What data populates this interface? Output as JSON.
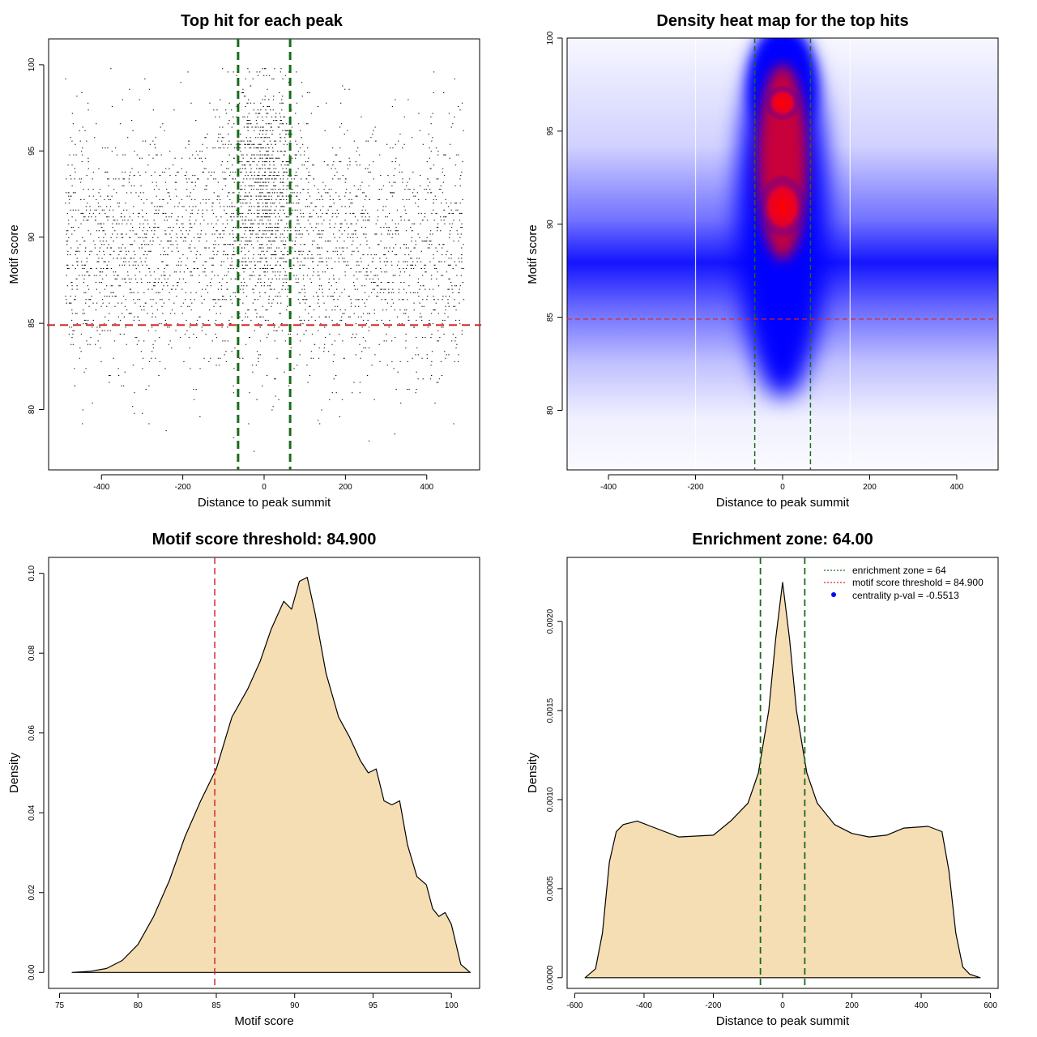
{
  "colors": {
    "threshold_line": "#d62728",
    "zone_line": "#1a6b1a",
    "density_fill": "#f5deb3",
    "heat_low": "#ffffff",
    "heat_mid": "#0000ff",
    "heat_high": "#ff0000",
    "points": "#000000",
    "legend_dot": "#0000ff"
  },
  "chart_data": [
    {
      "id": "scatter",
      "type": "scatter",
      "title": "Top hit for each peak",
      "xlabel": "Distance to peak summit",
      "ylabel": "Motif score",
      "xlim": [
        -530,
        530
      ],
      "ylim": [
        76.5,
        101.5
      ],
      "xticks": [
        -400,
        -200,
        0,
        200,
        400
      ],
      "yticks": [
        80,
        85,
        90,
        95,
        100
      ],
      "point_x_range": [
        -490,
        490
      ],
      "approx_point_count": 12000,
      "threshold": 84.9,
      "zone": [
        -64,
        64
      ]
    },
    {
      "id": "heatmap",
      "type": "heatmap",
      "title": "Density heat map for the top hits",
      "xlabel": "Distance to peak summit",
      "ylabel": "Motif score",
      "xlim": [
        -495,
        495
      ],
      "ylim": [
        76.8,
        100
      ],
      "xticks": [
        -400,
        -200,
        0,
        200,
        400
      ],
      "yticks": [
        80,
        85,
        90,
        95,
        100
      ],
      "hotspots": [
        {
          "x": 0,
          "y": 96.5,
          "intensity": "high"
        },
        {
          "x": 0,
          "y": 91,
          "intensity": "high"
        }
      ],
      "white_grid_x": [
        -200,
        155
      ],
      "threshold": 84.9,
      "zone": [
        -64,
        64
      ]
    },
    {
      "id": "score-density",
      "type": "area",
      "title": "Motif score threshold: 84.900",
      "xlabel": "Motif score",
      "ylabel": "Density",
      "xlim": [
        74.3,
        101.8
      ],
      "ylim": [
        -0.004,
        0.104
      ],
      "xticks": [
        75,
        80,
        85,
        90,
        95,
        100
      ],
      "yticks": [
        0.0,
        0.02,
        0.04,
        0.06,
        0.08,
        0.1
      ],
      "ytick_labels": [
        "0.00",
        "0.02",
        "0.04",
        "0.06",
        "0.08",
        "0.10"
      ],
      "x": [
        75.8,
        77,
        78,
        79,
        80,
        81,
        82,
        83,
        84,
        85,
        86,
        87,
        87.8,
        88.5,
        89.3,
        89.8,
        90.3,
        90.8,
        91.3,
        92,
        92.8,
        93.5,
        94.2,
        94.7,
        95.2,
        95.7,
        96.2,
        96.7,
        97.2,
        97.8,
        98.4,
        98.8,
        99.2,
        99.6,
        100,
        100.6,
        101.2
      ],
      "y": [
        0.0,
        0.0003,
        0.001,
        0.003,
        0.007,
        0.014,
        0.023,
        0.034,
        0.043,
        0.051,
        0.064,
        0.071,
        0.078,
        0.086,
        0.093,
        0.091,
        0.098,
        0.099,
        0.09,
        0.075,
        0.064,
        0.059,
        0.053,
        0.05,
        0.051,
        0.043,
        0.042,
        0.043,
        0.032,
        0.024,
        0.022,
        0.016,
        0.014,
        0.015,
        0.012,
        0.002,
        0.0
      ],
      "threshold": 84.9
    },
    {
      "id": "distance-density",
      "type": "area",
      "title": "Enrichment zone: 64.00",
      "xlabel": "Distance to peak summit",
      "ylabel": "Density",
      "xlim": [
        -622,
        622
      ],
      "ylim": [
        -6e-05,
        0.00236
      ],
      "xticks": [
        -600,
        -400,
        -200,
        0,
        200,
        400,
        600
      ],
      "yticks": [
        0.0,
        0.0005,
        0.001,
        0.0015,
        0.002
      ],
      "ytick_labels": [
        "0.0000",
        "0.0005",
        "0.0010",
        "0.0015",
        "0.0020"
      ],
      "x": [
        -570,
        -540,
        -520,
        -500,
        -480,
        -460,
        -420,
        -380,
        -300,
        -200,
        -150,
        -100,
        -70,
        -40,
        -20,
        0,
        20,
        40,
        70,
        100,
        150,
        200,
        250,
        300,
        350,
        420,
        460,
        480,
        500,
        520,
        540,
        570
      ],
      "y": [
        0.0,
        5e-05,
        0.00025,
        0.00065,
        0.00082,
        0.00086,
        0.00088,
        0.00085,
        0.00079,
        0.0008,
        0.00088,
        0.00098,
        0.00115,
        0.0015,
        0.0019,
        0.00222,
        0.0019,
        0.0015,
        0.00115,
        0.00098,
        0.00086,
        0.00081,
        0.00079,
        0.0008,
        0.00084,
        0.00085,
        0.00082,
        0.0006,
        0.00025,
        6e-05,
        2e-05,
        0.0
      ],
      "zone": [
        -64,
        64
      ],
      "legend": [
        {
          "text": "enrichment zone = 64",
          "style": "dotted",
          "color": "#1a6b1a"
        },
        {
          "text": "motif score threshold = 84.900",
          "style": "dotted",
          "color": "#d62728"
        },
        {
          "text": "centrality p-val = -0.5513",
          "style": "dot",
          "color": "#0000ff"
        }
      ],
      "legend_position": "top-right"
    }
  ]
}
